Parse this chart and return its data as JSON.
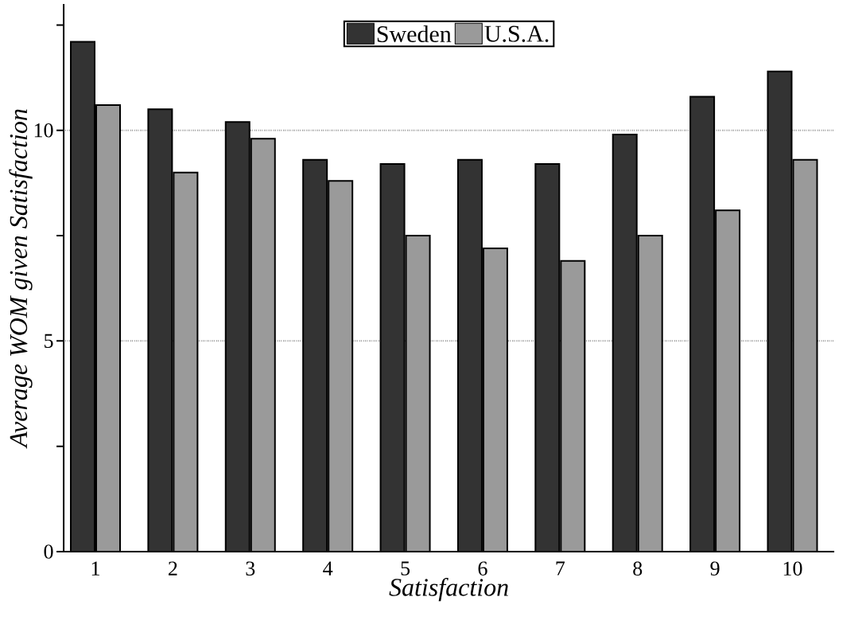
{
  "chart_data": {
    "type": "bar",
    "xlabel": "Satisfaction",
    "ylabel": "Average WOM given Satisfaction",
    "categories": [
      "1",
      "2",
      "3",
      "4",
      "5",
      "6",
      "7",
      "8",
      "9",
      "10"
    ],
    "series": [
      {
        "name": "Sweden",
        "color": "#333333",
        "values": [
          12.1,
          10.5,
          10.2,
          9.3,
          9.2,
          9.3,
          9.2,
          9.9,
          10.8,
          11.4
        ]
      },
      {
        "name": "U.S.A.",
        "color": "#9a9a9a",
        "values": [
          10.6,
          9.0,
          9.8,
          8.8,
          7.5,
          7.2,
          6.9,
          7.5,
          8.1,
          9.3
        ]
      }
    ],
    "ylim": [
      0,
      13
    ],
    "yticks": [
      0,
      {
        "value": 2.5,
        "label": null
      },
      5,
      {
        "value": 7.5,
        "label": null
      },
      10,
      {
        "value": 12.5,
        "label": null
      }
    ],
    "grid": "y",
    "legend": "top"
  }
}
